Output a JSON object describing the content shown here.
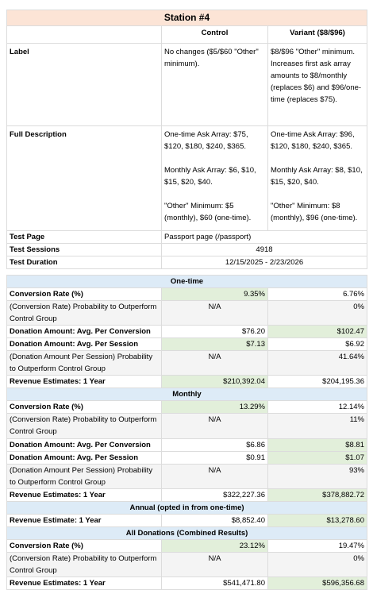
{
  "title": "Station #4",
  "columns": [
    "Control",
    "Variant ($8/$96)"
  ],
  "info_rows": [
    {
      "label": "Label",
      "values": [
        [
          "No changes ($5/$60 \"Other\" minimum)."
        ],
        [
          "$8/$96 \"Other\" minimum. Increases first ask array amounts to $8/monthly (replaces $6) and $96/one-time (replaces $75)."
        ]
      ]
    },
    {
      "label": "Full Description",
      "values": [
        [
          "One-time Ask Array: $75, $120, $180, $240, $365.",
          "Monthly Ask Array: $6, $10, $15, $20, $40.",
          "\"Other\" Minimum: $5 (monthly), $60 (one-time)."
        ],
        [
          "One-time Ask Array: $96, $120, $180, $240, $365.",
          "Monthly Ask Array: $8, $10, $15, $20, $40.",
          "\"Other\" Minimum: $8 (monthly), $96 (one-time)."
        ]
      ]
    },
    {
      "label": "Test Page",
      "values": [
        [
          "Passport page (/passport)"
        ]
      ]
    },
    {
      "label": "Test Sessions",
      "values": [
        [
          "4918"
        ]
      ]
    },
    {
      "label": "Test Duration",
      "values": [
        [
          "12/15/2025 - 2/23/2026"
        ]
      ]
    }
  ],
  "sections": [
    {
      "heading": "One-time",
      "rows": [
        {
          "label": "Conversion Rate (%)",
          "values": [
            "9.35%",
            "6.76%"
          ],
          "highlight": "control"
        },
        {
          "label": "(Conversion Rate) Probability to Outperform Control Group",
          "values": [
            "N/A",
            "0%"
          ]
        },
        {
          "label": "Donation Amount: Avg. Per Conversion",
          "values": [
            "$76.20",
            "$102.47"
          ],
          "highlight": "variant"
        },
        {
          "label": "Donation Amount: Avg. Per Session",
          "values": [
            "$7.13",
            "$6.92"
          ],
          "highlight": "control"
        },
        {
          "label": "(Donation Amount Per Session) Probability to Outperform Control Group",
          "values": [
            "N/A",
            "41.64%"
          ]
        },
        {
          "label": "Revenue Estimates: 1 Year",
          "values": [
            "$210,392.04",
            "$204,195.36"
          ],
          "highlight": "control"
        }
      ]
    },
    {
      "heading": "Monthly",
      "rows": [
        {
          "label": "Conversion Rate (%)",
          "values": [
            "13.29%",
            "12.14%"
          ],
          "highlight": "control"
        },
        {
          "label": "(Conversion Rate) Probability to Outperform Control Group",
          "values": [
            "N/A",
            "11%"
          ]
        },
        {
          "label": "Donation Amount: Avg. Per Conversion",
          "values": [
            "$6.86",
            "$8.81"
          ],
          "highlight": "variant"
        },
        {
          "label": "Donation Amount: Avg. Per Session",
          "values": [
            "$0.91",
            "$1.07"
          ],
          "highlight": "variant"
        },
        {
          "label": "(Donation Amount Per Session) Probability to Outperform Control Group",
          "values": [
            "N/A",
            "93%"
          ]
        },
        {
          "label": "Revenue Estimates: 1 Year",
          "values": [
            "$322,227.36",
            "$378,882.72"
          ],
          "highlight": "variant"
        }
      ]
    },
    {
      "heading": "Annual (opted in from one-time)",
      "rows": [
        {
          "label": "Revenue Estimate: 1 Year",
          "values": [
            "$8,852.40",
            "$13,278.60"
          ],
          "highlight": "variant"
        }
      ]
    },
    {
      "heading": "All Donations (Combined Results)",
      "rows": [
        {
          "label": "Conversion Rate (%)",
          "values": [
            "23.12%",
            "19.47%"
          ],
          "highlight": "control"
        },
        {
          "label": "(Conversion Rate) Probability to Outperform Control Group",
          "values": [
            "N/A",
            "0%"
          ]
        },
        {
          "label": "Revenue Estimates: 1 Year",
          "values": [
            "$541,471.80",
            "$596,356.68"
          ],
          "highlight": "variant"
        }
      ]
    }
  ]
}
